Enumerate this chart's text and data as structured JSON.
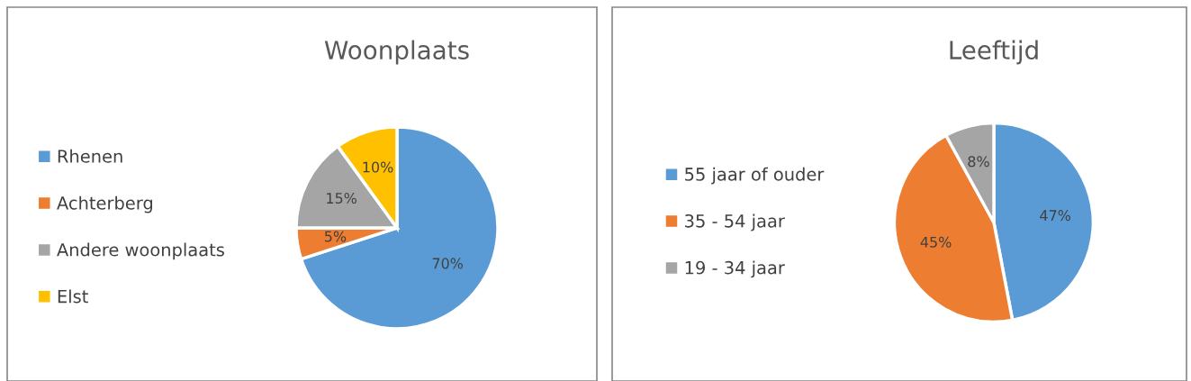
{
  "chart_data": [
    {
      "type": "pie",
      "title": "Woonplaats",
      "categories": [
        "Rhenen",
        "Achterberg",
        "Andere woonplaats",
        "Elst"
      ],
      "values": [
        70,
        5,
        15,
        10
      ],
      "value_labels": [
        "70%",
        "5%",
        "15%",
        "10%"
      ],
      "colors": [
        "#5b9bd5",
        "#ed7d31",
        "#a5a5a5",
        "#ffc000"
      ],
      "legend": "left"
    },
    {
      "type": "pie",
      "title": "Leeftijd",
      "categories": [
        "55 jaar of ouder",
        "35 - 54 jaar",
        "19 - 34 jaar"
      ],
      "values": [
        47,
        45,
        8
      ],
      "value_labels": [
        "47%",
        "45%",
        "8%"
      ],
      "colors": [
        "#5b9bd5",
        "#ed7d31",
        "#a5a5a5"
      ],
      "legend": "left"
    }
  ]
}
